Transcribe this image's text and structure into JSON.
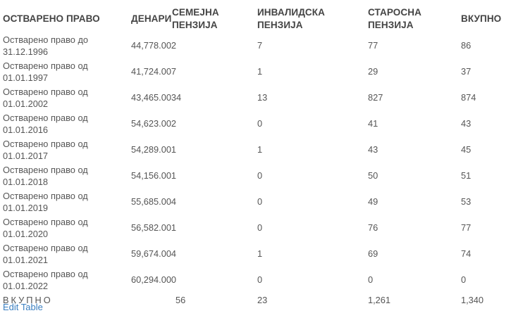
{
  "headers": [
    "ОСТВАРЕНО ПРАВО",
    "ДЕНАРИ",
    "СЕМЕЈНА ПЕНЗИЈА",
    "ИНВАЛИДСКА ПЕНЗИЈА",
    "СТАРОСНА ПЕНЗИЈА",
    "ВКУПНО"
  ],
  "rows": [
    {
      "label": "Остварено право до 31.12.1996",
      "denari": "44,778.002",
      "semejna": "",
      "invalidska": "7",
      "starosna": "77",
      "vkupno": "86"
    },
    {
      "label": "Остварено право од 01.01.1997",
      "denari": "41,724.007",
      "semejna": "",
      "invalidska": "1",
      "starosna": "29",
      "vkupno": "37"
    },
    {
      "label": "Остварено право од 01.01.2002",
      "denari": "43,465.0034",
      "semejna": "",
      "invalidska": "13",
      "starosna": "827",
      "vkupno": "874"
    },
    {
      "label": "Остварено право од 01.01.2016",
      "denari": "54,623.002",
      "semejna": "",
      "invalidska": "0",
      "starosna": "41",
      "vkupno": "43"
    },
    {
      "label": "Остварено право од 01.01.2017",
      "denari": "54,289.001",
      "semejna": "",
      "invalidska": "1",
      "starosna": "43",
      "vkupno": "45"
    },
    {
      "label": "Остварено право од 01.01.2018",
      "denari": "54,156.001",
      "semejna": "",
      "invalidska": "0",
      "starosna": "50",
      "vkupno": "51"
    },
    {
      "label": "Остварено право од 01.01.2019",
      "denari": "55,685.004",
      "semejna": "",
      "invalidska": "0",
      "starosna": "49",
      "vkupno": "53"
    },
    {
      "label": "Остварено право од 01.01.2020",
      "denari": "56,582.001",
      "semejna": "",
      "invalidska": "0",
      "starosna": "76",
      "vkupno": "77"
    },
    {
      "label": "Остварено право од 01.01.2021",
      "denari": "59,674.004",
      "semejna": "",
      "invalidska": "1",
      "starosna": "69",
      "vkupno": "74"
    },
    {
      "label": "Остварено право од 01.01.2022",
      "denari": "60,294.000",
      "semejna": "",
      "invalidska": "0",
      "starosna": "0",
      "vkupno": "0"
    }
  ],
  "total": {
    "label": "ВКУПНО",
    "denari": "",
    "semejna": "56",
    "invalidska": "23",
    "starosna": "1,261",
    "vkupno": "1,340"
  },
  "edit_link": "Edit Table",
  "colors": {
    "text": "#555555",
    "header": "#444444",
    "link": "#3a7fc1"
  }
}
